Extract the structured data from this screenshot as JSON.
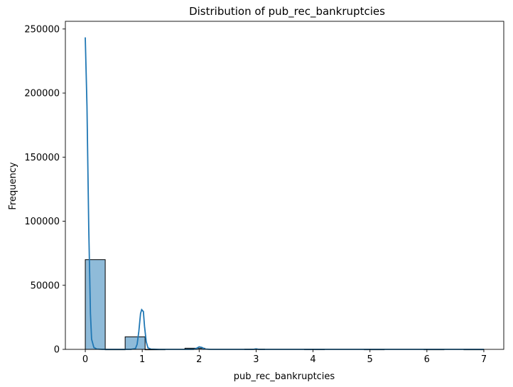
{
  "chart_data": {
    "type": "bar",
    "title": "Distribution of pub_rec_bankruptcies",
    "xlabel": "pub_rec_bankruptcies",
    "ylabel": "Frequency",
    "xlim": [
      -0.35,
      7.35
    ],
    "ylim": [
      0,
      256000
    ],
    "xticks": [
      0,
      1,
      2,
      3,
      4,
      5,
      6,
      7
    ],
    "yticks": [
      0,
      50000,
      100000,
      150000,
      200000,
      250000
    ],
    "grid": false,
    "bar_color": "#1f77b4",
    "bar_opacity": 0.5,
    "kde_color": "#1f77b4",
    "bars": [
      {
        "x0": 0.0,
        "x1": 0.35,
        "value": 70000
      },
      {
        "x0": 0.35,
        "x1": 0.7,
        "value": 0
      },
      {
        "x0": 0.7,
        "x1": 1.05,
        "value": 9800
      },
      {
        "x0": 1.05,
        "x1": 1.4,
        "value": 0
      },
      {
        "x0": 1.75,
        "x1": 2.1,
        "value": 900
      },
      {
        "x0": 2.8,
        "x1": 3.15,
        "value": 200
      },
      {
        "x0": 3.85,
        "x1": 4.2,
        "value": 40
      },
      {
        "x0": 4.9,
        "x1": 5.25,
        "value": 10
      },
      {
        "x0": 5.95,
        "x1": 6.3,
        "value": 5
      },
      {
        "x0": 6.65,
        "x1": 7.0,
        "value": 2
      }
    ],
    "kde": [
      [
        0.0,
        243500
      ],
      [
        0.03,
        190000
      ],
      [
        0.06,
        95000
      ],
      [
        0.09,
        28000
      ],
      [
        0.11,
        8000
      ],
      [
        0.15,
        1500
      ],
      [
        0.2,
        300
      ],
      [
        0.3,
        0
      ],
      [
        0.5,
        0
      ],
      [
        0.8,
        0
      ],
      [
        0.88,
        600
      ],
      [
        0.91,
        4000
      ],
      [
        0.94,
        14000
      ],
      [
        0.97,
        28000
      ],
      [
        0.99,
        31000
      ],
      [
        1.02,
        29500
      ],
      [
        1.04,
        18000
      ],
      [
        1.07,
        6000
      ],
      [
        1.1,
        1200
      ],
      [
        1.15,
        200
      ],
      [
        1.3,
        0
      ],
      [
        1.9,
        0
      ],
      [
        1.95,
        700
      ],
      [
        2.0,
        2000
      ],
      [
        2.05,
        1500
      ],
      [
        2.1,
        300
      ],
      [
        2.2,
        0
      ],
      [
        2.95,
        0
      ],
      [
        3.0,
        400
      ],
      [
        3.05,
        0
      ],
      [
        7.0,
        0
      ]
    ]
  }
}
